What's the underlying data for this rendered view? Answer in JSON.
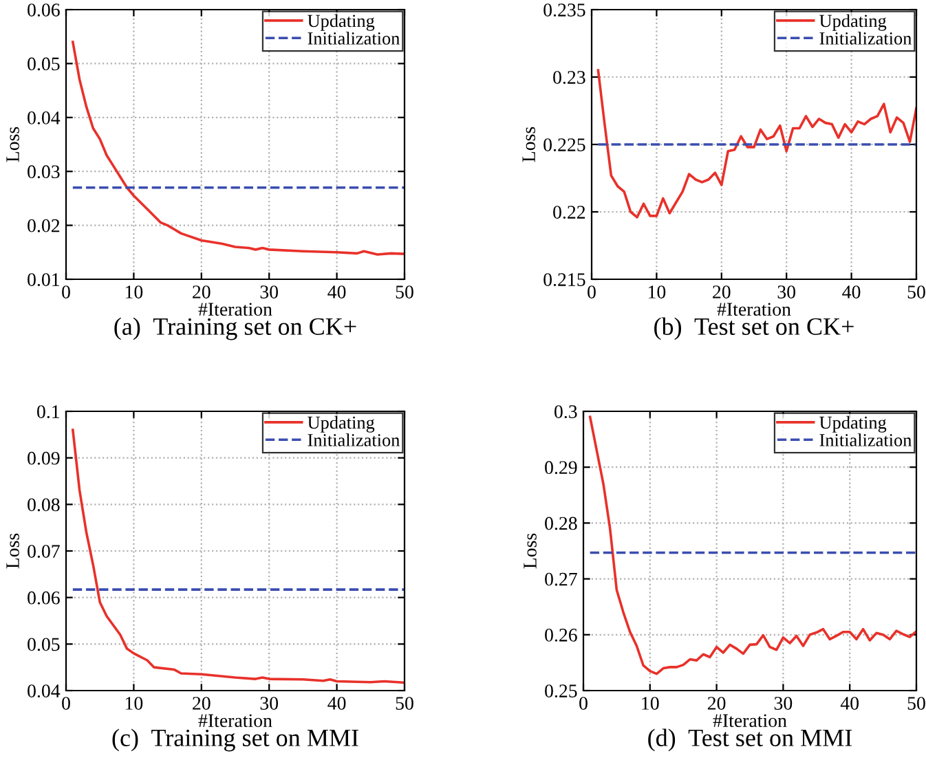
{
  "chart_data": [
    {
      "type": "line",
      "xlabel": "#Iteration",
      "ylabel": "Loss",
      "annotations": [
        "(a)  Training set on CK+"
      ],
      "xlim": [
        0,
        50
      ],
      "xticks": [
        0,
        10,
        20,
        30,
        40,
        50
      ],
      "ylim": [
        0.01,
        0.06
      ],
      "yticks": [
        0.01,
        0.02,
        0.03,
        0.04,
        0.05,
        0.06
      ],
      "grid": true,
      "legend": "top right",
      "series": [
        {
          "name": "Updating",
          "color": "#e8312a",
          "line_style": "solid",
          "x": [
            1,
            2,
            3,
            4,
            5,
            6,
            7,
            8,
            9,
            10,
            12,
            14,
            15,
            17,
            20,
            23,
            25,
            27,
            28,
            29,
            30,
            35,
            40,
            43,
            44,
            46,
            48,
            50
          ],
          "values": [
            0.054,
            0.047,
            0.042,
            0.038,
            0.036,
            0.033,
            0.031,
            0.029,
            0.027,
            0.0255,
            0.023,
            0.0205,
            0.02,
            0.0185,
            0.0172,
            0.0166,
            0.016,
            0.0158,
            0.0155,
            0.0158,
            0.0155,
            0.0152,
            0.015,
            0.0148,
            0.0152,
            0.0146,
            0.0148,
            0.0147
          ]
        },
        {
          "name": "Initialization",
          "color": "#3a4db0",
          "line_style": "dashed",
          "x": [
            1,
            50
          ],
          "values": [
            0.027,
            0.027
          ]
        }
      ]
    },
    {
      "type": "line",
      "xlabel": "#Iteration",
      "ylabel": "Loss",
      "annotations": [
        "(b)  Test set on CK+"
      ],
      "xlim": [
        0,
        50
      ],
      "xticks": [
        0,
        10,
        20,
        30,
        40,
        50
      ],
      "ylim": [
        0.215,
        0.235
      ],
      "yticks": [
        0.215,
        0.22,
        0.225,
        0.23,
        0.235
      ],
      "grid": true,
      "legend": "top right",
      "series": [
        {
          "name": "Updating",
          "color": "#e8312a",
          "line_style": "solid",
          "x": [
            1,
            2,
            3,
            4,
            5,
            6,
            7,
            8,
            9,
            10,
            11,
            12,
            13,
            14,
            15,
            16,
            17,
            18,
            19,
            20,
            21,
            22,
            23,
            24,
            25,
            26,
            27,
            28,
            29,
            30,
            31,
            32,
            33,
            34,
            35,
            36,
            37,
            38,
            39,
            40,
            41,
            42,
            43,
            44,
            45,
            46,
            47,
            48,
            49,
            50
          ],
          "values": [
            0.2305,
            0.2265,
            0.2227,
            0.2219,
            0.2215,
            0.22,
            0.2196,
            0.2206,
            0.2197,
            0.2197,
            0.221,
            0.2199,
            0.2207,
            0.2215,
            0.2228,
            0.2224,
            0.2222,
            0.2224,
            0.2229,
            0.222,
            0.2245,
            0.2246,
            0.2256,
            0.2248,
            0.2248,
            0.2261,
            0.2254,
            0.2256,
            0.2264,
            0.2245,
            0.2262,
            0.2262,
            0.2271,
            0.2263,
            0.2269,
            0.2266,
            0.2265,
            0.2255,
            0.2265,
            0.2259,
            0.2267,
            0.2265,
            0.2269,
            0.2271,
            0.228,
            0.2259,
            0.227,
            0.2266,
            0.2252,
            0.2277
          ]
        },
        {
          "name": "Initialization",
          "color": "#3a4db0",
          "line_style": "dashed",
          "x": [
            1,
            50
          ],
          "values": [
            0.225,
            0.225
          ]
        }
      ]
    },
    {
      "type": "line",
      "xlabel": "#Iteration",
      "ylabel": "Loss",
      "annotations": [
        "(c)  Training set on MMI"
      ],
      "xlim": [
        0,
        50
      ],
      "xticks": [
        0,
        10,
        20,
        30,
        40,
        50
      ],
      "ylim": [
        0.04,
        0.1
      ],
      "yticks": [
        0.04,
        0.05,
        0.06,
        0.07,
        0.08,
        0.09,
        0.1
      ],
      "grid": true,
      "legend": "top right",
      "series": [
        {
          "name": "Updating",
          "color": "#e8312a",
          "line_style": "solid",
          "x": [
            1,
            2,
            3,
            4,
            5,
            6,
            7,
            8,
            9,
            10,
            12,
            13,
            16,
            17,
            20,
            25,
            28,
            29,
            30,
            35,
            38,
            39,
            40,
            45,
            47,
            49,
            50
          ],
          "values": [
            0.096,
            0.083,
            0.074,
            0.067,
            0.059,
            0.056,
            0.054,
            0.052,
            0.049,
            0.048,
            0.0465,
            0.045,
            0.0445,
            0.0437,
            0.0435,
            0.0428,
            0.0425,
            0.0428,
            0.0425,
            0.0424,
            0.0421,
            0.0424,
            0.042,
            0.0418,
            0.042,
            0.0418,
            0.0417
          ]
        },
        {
          "name": "Initialization",
          "color": "#3a4db0",
          "line_style": "dashed",
          "x": [
            1,
            50
          ],
          "values": [
            0.0617,
            0.0617
          ]
        }
      ]
    },
    {
      "type": "line",
      "xlabel": "#Iteration",
      "ylabel": "Loss",
      "annotations": [
        "(d)  Test set on MMI"
      ],
      "xlim": [
        0,
        50
      ],
      "xticks": [
        0,
        10,
        20,
        30,
        40,
        50
      ],
      "ylim": [
        0.25,
        0.3
      ],
      "yticks": [
        0.25,
        0.26,
        0.27,
        0.28,
        0.29,
        0.3
      ],
      "grid": true,
      "legend": "top right",
      "series": [
        {
          "name": "Updating",
          "color": "#e8312a",
          "line_style": "solid",
          "x": [
            1,
            2,
            3,
            4,
            5,
            6,
            7,
            8,
            9,
            10,
            11,
            12,
            13,
            14,
            15,
            16,
            17,
            18,
            19,
            20,
            21,
            22,
            23,
            24,
            25,
            26,
            27,
            28,
            29,
            30,
            31,
            32,
            33,
            34,
            35,
            36,
            37,
            38,
            39,
            40,
            41,
            42,
            43,
            44,
            45,
            46,
            47,
            48,
            49,
            50
          ],
          "values": [
            0.299,
            0.293,
            0.287,
            0.279,
            0.268,
            0.264,
            0.2605,
            0.258,
            0.2545,
            0.2535,
            0.253,
            0.254,
            0.2542,
            0.2542,
            0.2546,
            0.2556,
            0.2554,
            0.2565,
            0.256,
            0.2578,
            0.2568,
            0.2582,
            0.2575,
            0.2566,
            0.2582,
            0.2583,
            0.2599,
            0.2578,
            0.2573,
            0.2595,
            0.2585,
            0.2598,
            0.258,
            0.26,
            0.2604,
            0.261,
            0.2592,
            0.2598,
            0.2605,
            0.2605,
            0.2592,
            0.261,
            0.259,
            0.2603,
            0.26,
            0.2592,
            0.2607,
            0.2601,
            0.2596,
            0.2606
          ]
        },
        {
          "name": "Initialization",
          "color": "#3a4db0",
          "line_style": "dashed",
          "x": [
            1,
            50
          ],
          "values": [
            0.2747,
            0.2747
          ]
        }
      ]
    }
  ]
}
